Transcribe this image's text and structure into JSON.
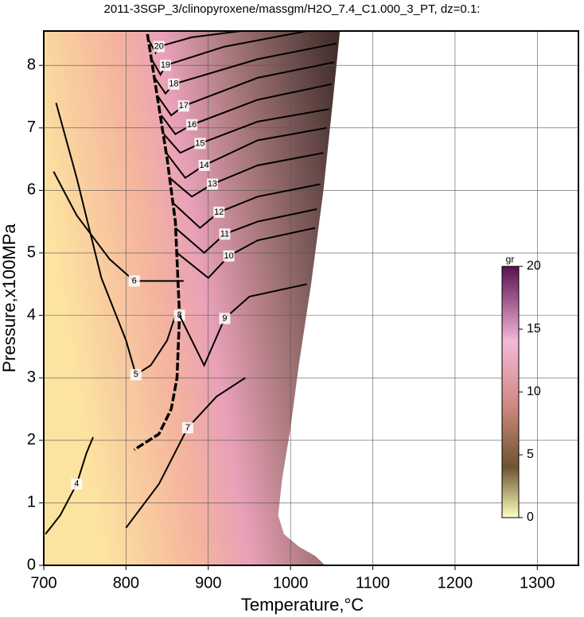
{
  "chart_data": {
    "type": "contour",
    "title": "2011-3SGP_3/clinopyroxene/massgm/H2O_7.4_C1.000_3_PT, dz=0.1:",
    "x_label": "Temperature,°C",
    "y_label": "Pressure,x100MPa",
    "xlim": [
      700,
      1350
    ],
    "ylim": [
      0,
      8.55
    ],
    "xticks": [
      700,
      800,
      900,
      1000,
      1100,
      1200,
      1300
    ],
    "yticks": [
      0,
      1,
      2,
      3,
      4,
      5,
      6,
      7,
      8
    ],
    "grid": true,
    "field_boundary": {
      "x": [
        700,
        700,
        1060,
        1052,
        1040,
        1025,
        1010,
        1000,
        990,
        985,
        992,
        1010,
        1030,
        1042,
        700
      ],
      "y": [
        0,
        8.55,
        8.55,
        7.5,
        6,
        4.5,
        3.2,
        2.2,
        1.4,
        0.8,
        0.5,
        0.3,
        0.15,
        0,
        0
      ]
    },
    "contours": [
      {
        "level": 4,
        "x": [
          702,
          720,
          740,
          752,
          760
        ],
        "y": [
          0.5,
          0.8,
          1.3,
          1.8,
          2.05
        ]
      },
      {
        "level": 5,
        "x": [
          715,
          740,
          770,
          800,
          812,
          830,
          850,
          860
        ],
        "y": [
          7.4,
          6.2,
          4.6,
          3.6,
          3.05,
          3.2,
          3.6,
          4.0
        ]
      },
      {
        "level": 6,
        "x": [
          712,
          740,
          780,
          810,
          860,
          870
        ],
        "y": [
          6.3,
          5.6,
          4.9,
          4.55,
          4.55,
          4.55
        ]
      },
      {
        "level": 7,
        "x": [
          800,
          840,
          875,
          910,
          945
        ],
        "y": [
          0.6,
          1.3,
          2.2,
          2.7,
          3.0
        ]
      },
      {
        "level": 8,
        "x": [
          826,
          838,
          850,
          860,
          865,
          862,
          855,
          840,
          810
        ],
        "y": [
          8.5,
          7.5,
          6.5,
          5.5,
          4.0,
          3.0,
          2.5,
          2.1,
          1.85
        ]
      },
      {
        "level": 9,
        "x": [
          865,
          895,
          920,
          950,
          1020
        ],
        "y": [
          4.0,
          3.2,
          3.95,
          4.3,
          4.5
        ]
      },
      {
        "level": 10,
        "x": [
          862,
          900,
          925,
          960,
          1030
        ],
        "y": [
          5.0,
          4.6,
          4.95,
          5.2,
          5.4
        ]
      },
      {
        "level": 11,
        "x": [
          860,
          895,
          920,
          960,
          1032
        ],
        "y": [
          5.4,
          5.0,
          5.3,
          5.5,
          5.7
        ]
      },
      {
        "level": 12,
        "x": [
          857,
          890,
          913,
          960,
          1036
        ],
        "y": [
          5.8,
          5.4,
          5.65,
          5.9,
          6.1
        ]
      },
      {
        "level": 13,
        "x": [
          853,
          880,
          905,
          960,
          1040
        ],
        "y": [
          6.2,
          5.9,
          6.1,
          6.4,
          6.6
        ]
      },
      {
        "level": 14,
        "x": [
          849,
          872,
          895,
          960,
          1044
        ],
        "y": [
          6.6,
          6.2,
          6.4,
          6.8,
          7.0
        ]
      },
      {
        "level": 15,
        "x": [
          846,
          866,
          890,
          960,
          1047
        ],
        "y": [
          6.9,
          6.6,
          6.75,
          7.1,
          7.3
        ]
      },
      {
        "level": 16,
        "x": [
          843,
          860,
          880,
          960,
          1050
        ],
        "y": [
          7.2,
          6.9,
          7.05,
          7.45,
          7.7
        ]
      },
      {
        "level": 17,
        "x": [
          839,
          855,
          870,
          960,
          1053
        ],
        "y": [
          7.5,
          7.2,
          7.35,
          7.8,
          8.05
        ]
      },
      {
        "level": 18,
        "x": [
          835,
          848,
          858,
          960,
          1056
        ],
        "y": [
          7.8,
          7.55,
          7.7,
          8.1,
          8.35
        ]
      },
      {
        "level": 19,
        "x": [
          831,
          842,
          848,
          920,
          1020
        ],
        "y": [
          8.1,
          7.85,
          8.0,
          8.3,
          8.55
        ]
      },
      {
        "level": 20,
        "x": [
          828,
          836,
          840,
          880,
          940
        ],
        "y": [
          8.4,
          8.2,
          8.3,
          8.45,
          8.55
        ]
      }
    ],
    "colorbar": {
      "label": "gr",
      "lim": [
        0,
        20
      ],
      "ticks": [
        0,
        5,
        10,
        15,
        20
      ]
    }
  }
}
